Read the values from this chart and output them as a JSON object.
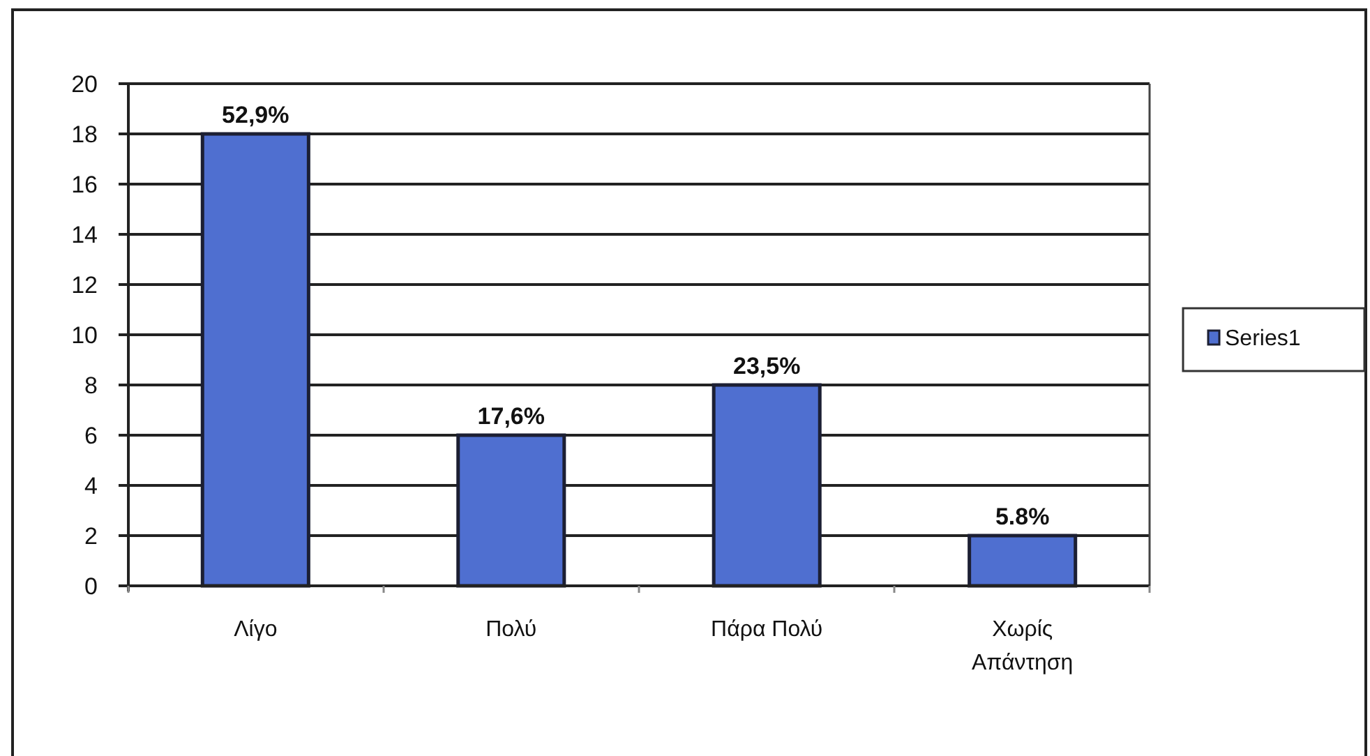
{
  "chart_data": {
    "type": "bar",
    "categories": [
      "Λίγο",
      "Πολύ",
      "Πάρα Πολύ",
      "Χωρίς Απάντηση"
    ],
    "series": [
      {
        "name": "Series1",
        "color": "#4f6fd0",
        "values": [
          18,
          6,
          8,
          2
        ]
      }
    ],
    "annotations": [
      {
        "text": "52,9%",
        "x": "Λίγο",
        "y": 18
      },
      {
        "text": "17,6%",
        "x": "Πολύ",
        "y": 6
      },
      {
        "text": "23,5%",
        "x": "Πάρα Πολύ",
        "y": 8
      },
      {
        "text": "5.8%",
        "x": "Χωρίς Απάντηση",
        "y": 2
      }
    ],
    "ylim": [
      0,
      20
    ],
    "yticks": [
      0,
      2,
      4,
      6,
      8,
      10,
      12,
      14,
      16,
      18,
      20
    ],
    "grid": "y",
    "legend": "right"
  }
}
